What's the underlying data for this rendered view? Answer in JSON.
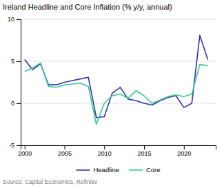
{
  "chart_data": {
    "type": "line",
    "title": "Ireland Headline and Core Inflation (% y/y, annual)",
    "annotations": [
      "Source: Capital Economics, Refinitiv"
    ],
    "x": [
      2000,
      2001,
      2002,
      2003,
      2004,
      2005,
      2006,
      2007,
      2008,
      2009,
      2010,
      2011,
      2012,
      2013,
      2014,
      2015,
      2016,
      2017,
      2018,
      2019,
      2020,
      2021,
      2022,
      2023
    ],
    "series": [
      {
        "name": "Headline",
        "color": "#3333aa",
        "values": [
          5.2,
          4.0,
          4.7,
          2.2,
          2.2,
          2.5,
          2.7,
          2.9,
          3.1,
          -1.7,
          -1.6,
          1.2,
          1.9,
          0.5,
          0.3,
          0.0,
          -0.2,
          0.3,
          0.7,
          0.9,
          -0.5,
          0.0,
          8.1,
          5.2
        ]
      },
      {
        "name": "Core",
        "color": "#33cc99",
        "values": [
          3.8,
          4.2,
          4.8,
          2.0,
          1.9,
          2.2,
          2.3,
          2.4,
          2.0,
          -2.5,
          0.0,
          0.9,
          1.1,
          0.6,
          1.5,
          0.9,
          0.0,
          0.4,
          0.8,
          1.0,
          0.8,
          1.1,
          4.6,
          4.5
        ]
      }
    ],
    "xlim": [
      1999.5,
      2024
    ],
    "xticks": [
      2000,
      2005,
      2010,
      2015,
      2020
    ],
    "ylim": [
      -5,
      10
    ],
    "yticks": [
      -5,
      0,
      5,
      10
    ],
    "grid": true,
    "legend": "bottom"
  }
}
